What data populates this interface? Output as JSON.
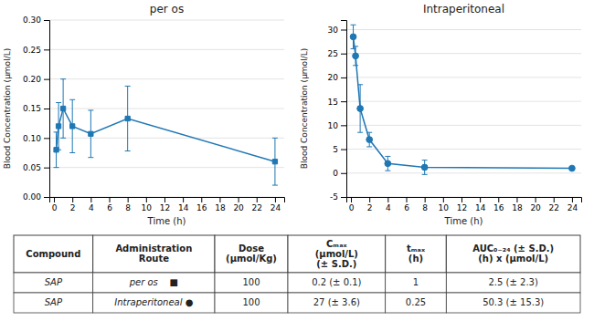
{
  "chart_data": [
    {
      "type": "line",
      "title": "per os",
      "xlabel": "Time (h)",
      "ylabel": "Blood Concentration (μmol/L)",
      "x": [
        0.25,
        0.5,
        1,
        2,
        4,
        8,
        24
      ],
      "series": [
        {
          "values": [
            0.08,
            0.12,
            0.15,
            0.12,
            0.107,
            0.133,
            0.06
          ],
          "error": [
            0.03,
            0.04,
            0.05,
            0.045,
            0.04,
            0.055,
            0.04
          ],
          "marker": "square"
        }
      ],
      "xlim": [
        -0.5,
        25
      ],
      "ylim": [
        0,
        0.3
      ],
      "xticks": [
        0,
        2,
        4,
        6,
        8,
        10,
        12,
        14,
        16,
        18,
        20,
        22,
        24
      ],
      "yticks": [
        {
          "value": 0,
          "label": "0.00"
        },
        0.05,
        {
          "value": 0.1,
          "label": "0.10"
        },
        0.15,
        {
          "value": 0.2,
          "label": "0.20"
        },
        0.25,
        {
          "value": 0.3,
          "label": "0.30"
        }
      ],
      "grid": true
    },
    {
      "type": "line",
      "title": "Intraperitoneal",
      "xlabel": "Time (h)",
      "ylabel": "Blood Concentration (μmol/L)",
      "x": [
        0.25,
        0.5,
        1,
        2,
        4,
        8,
        24
      ],
      "series": [
        {
          "values": [
            28.5,
            24.5,
            13.5,
            7.0,
            2.0,
            1.2,
            1.0
          ],
          "error": [
            2.5,
            2.0,
            5.0,
            1.5,
            1.5,
            1.5,
            0.3
          ],
          "marker": "circle"
        }
      ],
      "xlim": [
        -0.5,
        25
      ],
      "ylim": [
        -5,
        32
      ],
      "xticks": [
        0,
        2,
        4,
        6,
        8,
        10,
        12,
        14,
        16,
        18,
        20,
        22,
        24
      ],
      "yticks": [
        -5,
        0,
        5,
        10,
        15,
        20,
        25,
        30
      ],
      "grid": true
    },
    {
      "type": "table",
      "columns": [
        "Compound",
        "Administration\nRoute",
        "Dose\n(μmol/Kg)",
        "Cₘₐₓ\n(μmol/L)\n(± S.D.)",
        "tₘₐₓ\n(h)",
        "AUC₀₋₂₄ (± S.D.)\n(h) x (μmol/L)"
      ],
      "rows": [
        [
          "SAP",
          "per os    ■",
          "100",
          "0.2 (± 0.1)",
          "1",
          "2.5 (± 2.3)"
        ],
        [
          "SAP",
          "Intraperitoneal ●",
          "100",
          "27 (± 3.6)",
          "0.25",
          "50.3 (± 15.3)"
        ]
      ]
    }
  ]
}
